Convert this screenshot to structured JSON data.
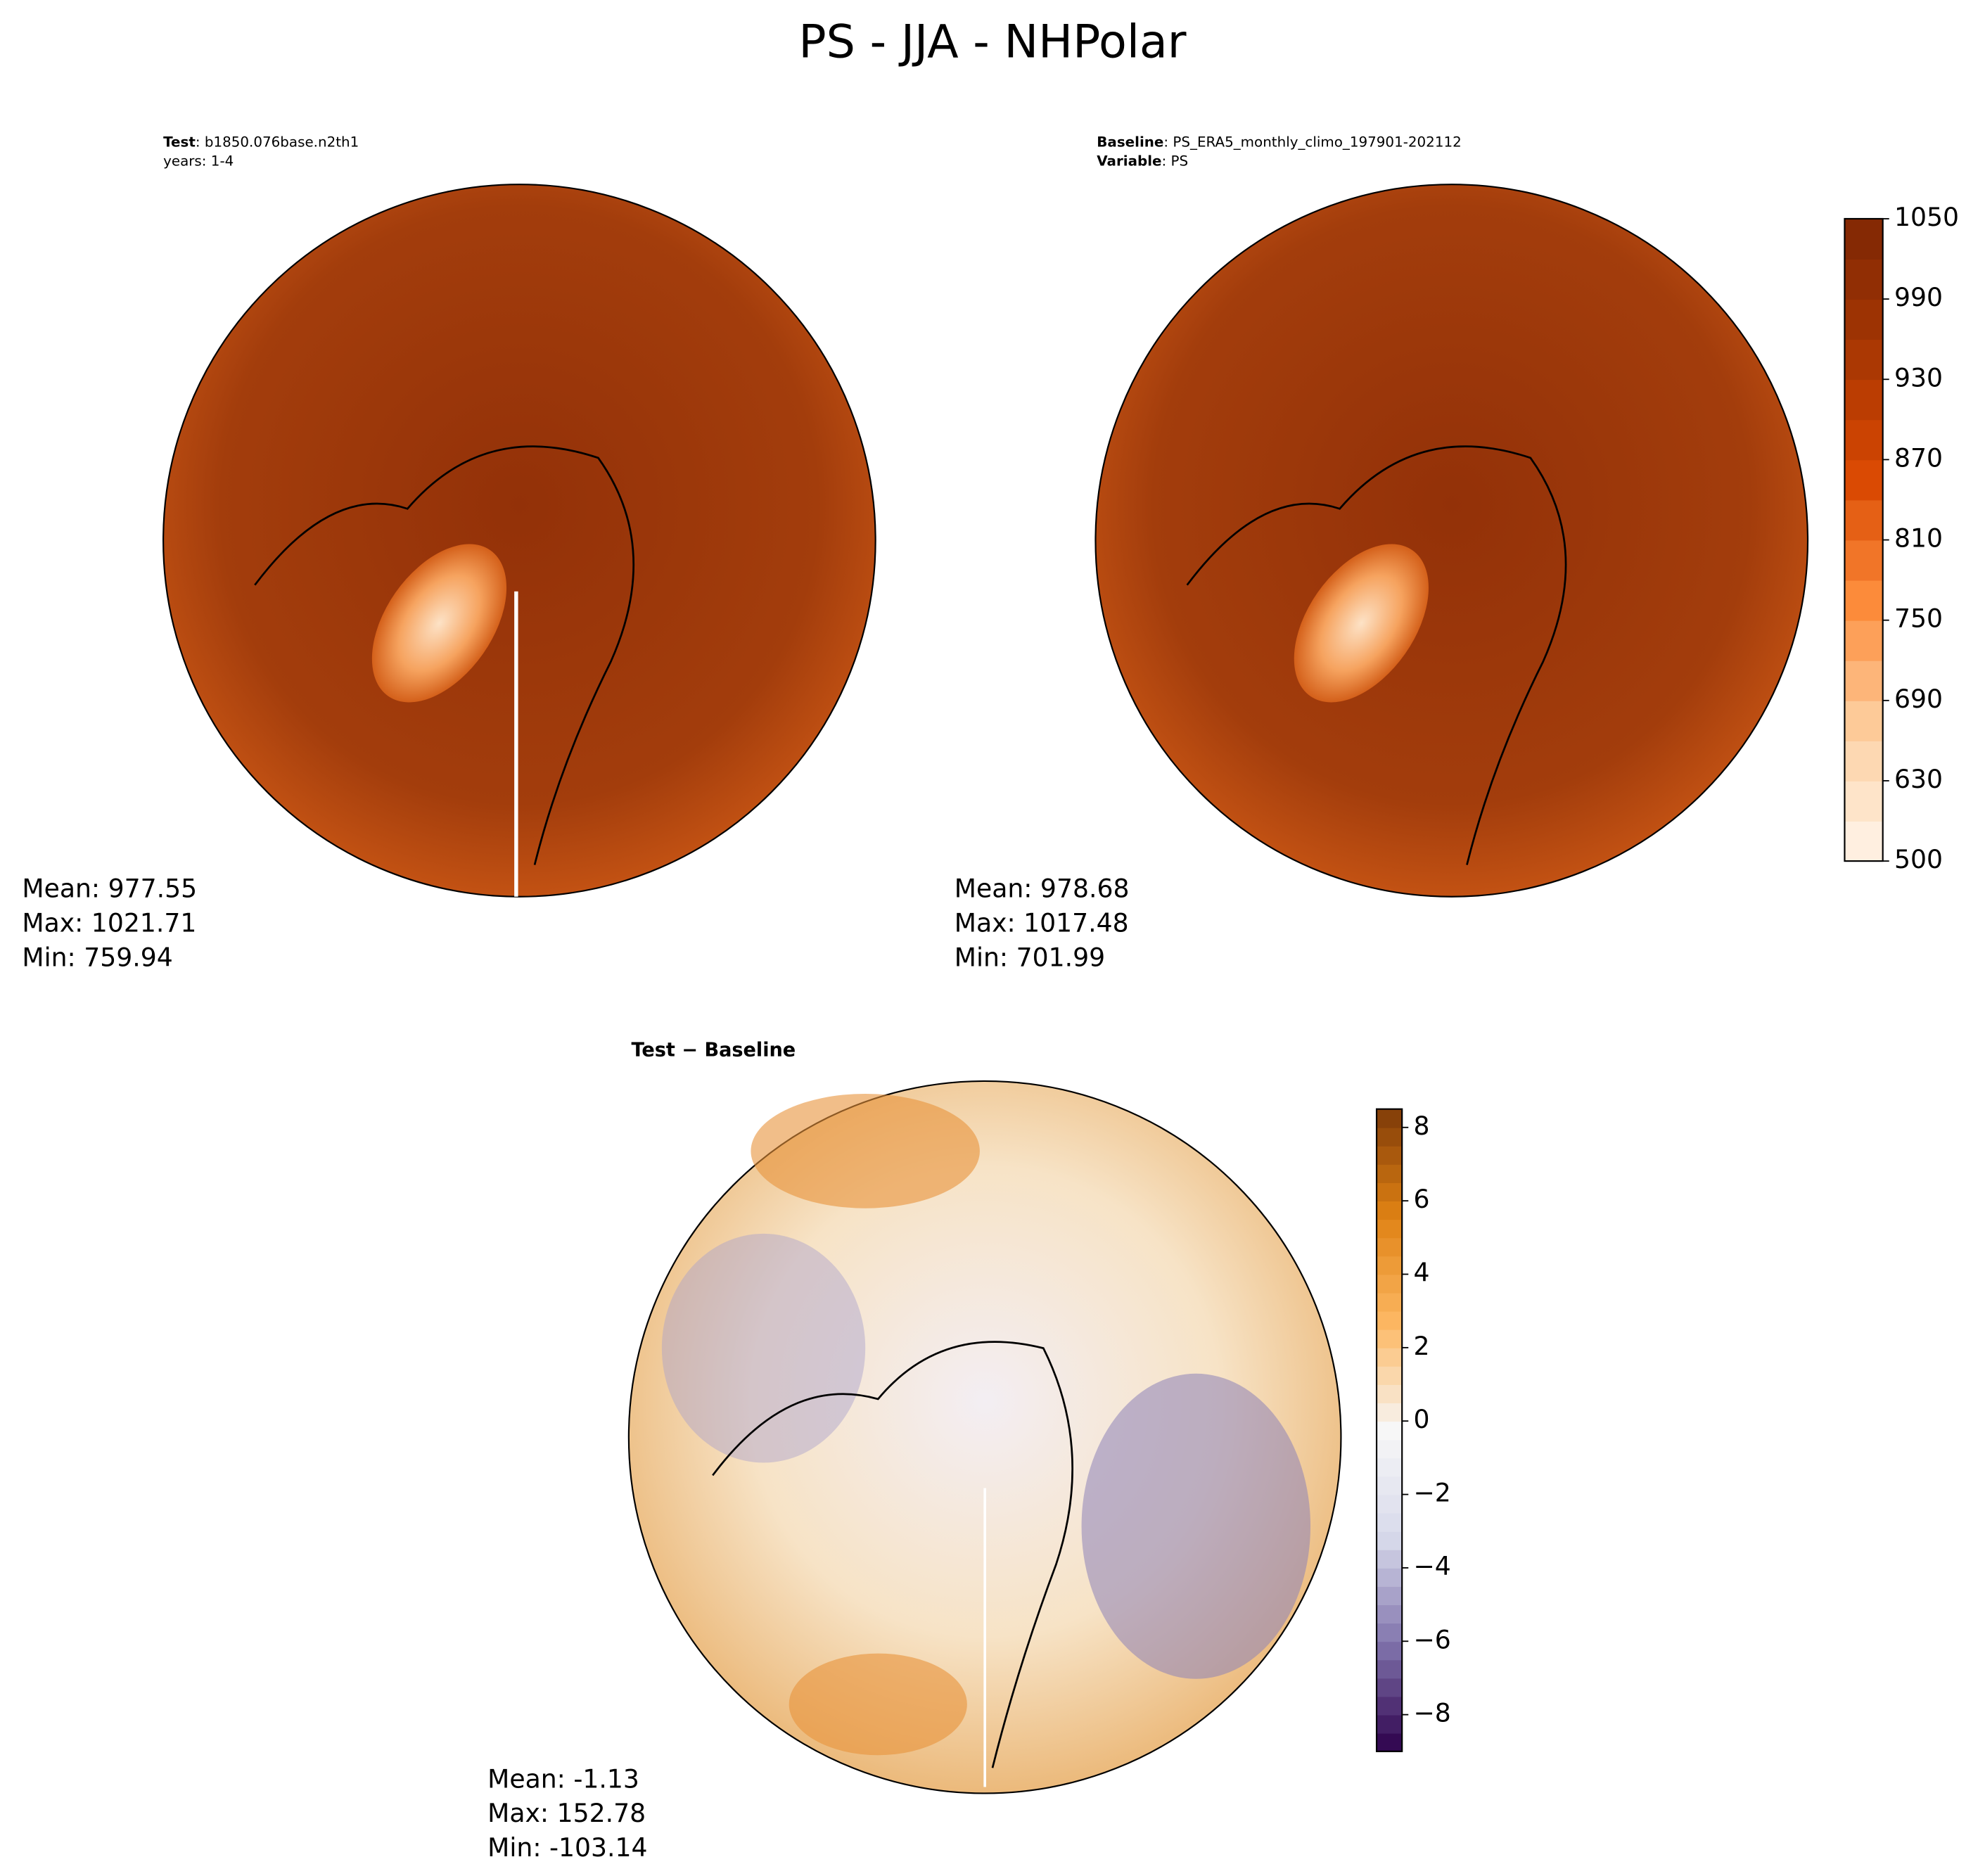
{
  "chart_data": {
    "type": "polar-map",
    "title": "PS - JJA - NHPolar",
    "panels": [
      {
        "header": [
          {
            "label": "Test",
            "text": ": b1850.076base.n2th1"
          },
          {
            "text": "years: 1-4"
          }
        ],
        "stats": [
          "Mean: 977.55",
          "Max: 1021.71",
          "Min: 759.94"
        ]
      },
      {
        "header": [
          {
            "label": "Baseline",
            "text": ": PS_ERA5_monthly_climo_197901-202112"
          },
          {
            "label": "Variable",
            "text": ": PS"
          }
        ],
        "stats": [
          "Mean: 978.68",
          "Max: 1017.48",
          "Min: 701.99"
        ]
      },
      {
        "header": [
          {
            "label": "Test − Baseline"
          }
        ],
        "stats": [
          "Mean: -1.13",
          "Max: 152.78",
          "Min: -103.14"
        ]
      }
    ],
    "colorbars": [
      {
        "ylim": [
          500,
          1050
        ],
        "levels": [
          500,
          600,
          630,
          660,
          690,
          720,
          750,
          780,
          810,
          840,
          870,
          900,
          930,
          960,
          990,
          1020,
          1050
        ],
        "yticks": [
          500,
          630,
          690,
          750,
          810,
          870,
          930,
          990,
          1050
        ],
        "colors": [
          "#fff5eb",
          "#fdd0a2",
          "#fd8d3c",
          "#d94801",
          "#a63603",
          "#7f2704"
        ]
      },
      {
        "ylim": [
          -9,
          8.5
        ],
        "yticks": [
          {
            "value": -8,
            "label": "−8"
          },
          {
            "value": -6,
            "label": "−6"
          },
          {
            "value": -4,
            "label": "−4"
          },
          {
            "value": -2,
            "label": "−2"
          },
          0,
          2,
          4,
          6,
          8
        ],
        "colors": [
          "#2d004b",
          "#8073ac",
          "#d8daeb",
          "#f7f7f7",
          "#fdb863",
          "#e08214",
          "#7f3b08"
        ]
      }
    ]
  }
}
